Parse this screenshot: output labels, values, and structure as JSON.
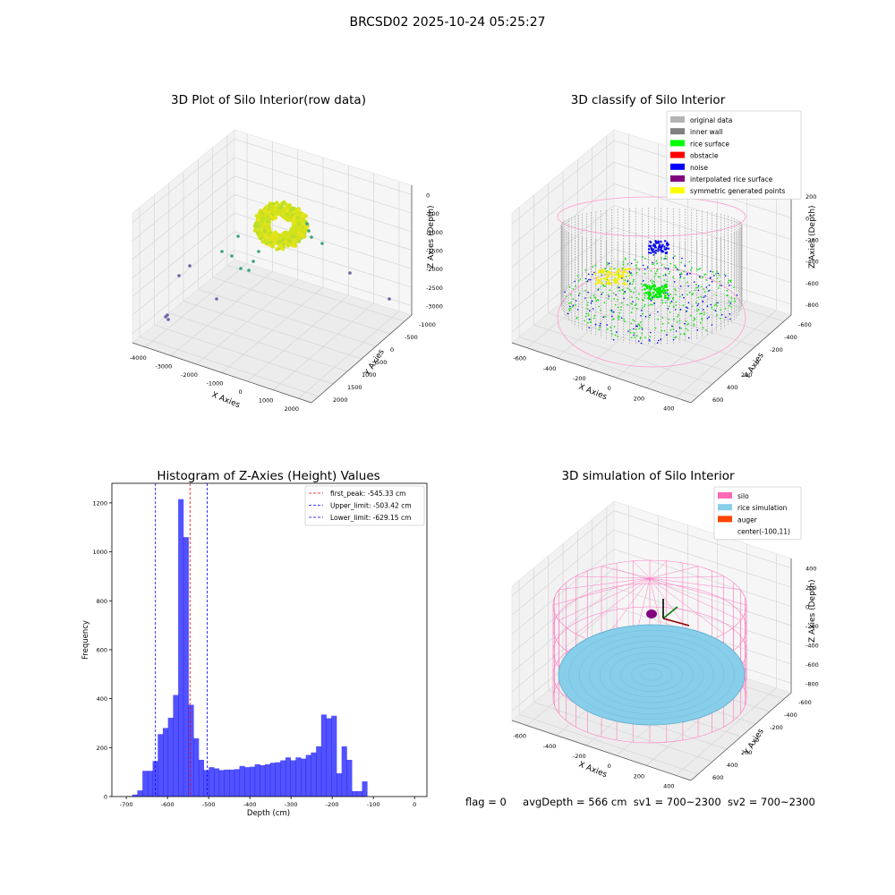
{
  "suptitle": "BRCSD02 2025-10-24 05:25:27",
  "footer": {
    "flag": "flag = 0",
    "avg_depth": "avgDepth = 566 cm",
    "sv1": "sv1 = 700~2300",
    "sv2": "sv2 = 700~2300"
  },
  "panel_raw": {
    "title": "3D Plot of Silo Interior(row data)",
    "xlabel": "X Axies",
    "ylabel": "Y Axies",
    "zlabel": "Z Axies (Depth)",
    "xticks": [
      "-4000",
      "-3000",
      "-2000",
      "-1000",
      "0",
      "1000",
      "2000"
    ],
    "yticks": [
      "-1000",
      "-500",
      "0",
      "500",
      "1000",
      "1500",
      "2000"
    ],
    "zticks": [
      "0",
      "-500",
      "-1000",
      "-1500",
      "-2000",
      "-2500",
      "-3000"
    ],
    "colors": {
      "surface": "#c8e01a",
      "outlier": "#3aa57d",
      "far": "#6a63a8"
    }
  },
  "panel_classify": {
    "title": "3D classify of Silo Interior",
    "xlabel": "X Axies",
    "ylabel": "Y Axies",
    "zlabel": "Z Axies (Depth)",
    "xticks": [
      "-600",
      "-400",
      "-200",
      "0",
      "200",
      "400"
    ],
    "yticks": [
      "-600",
      "-400",
      "-200",
      "0",
      "200",
      "400",
      "600"
    ],
    "zticks": [
      "200",
      "0",
      "-200",
      "-400",
      "-600",
      "-800"
    ],
    "legend": [
      {
        "label": "original data",
        "color": "#b3b3b3"
      },
      {
        "label": "inner wall",
        "color": "#808080"
      },
      {
        "label": "rice surface",
        "color": "#00ff00"
      },
      {
        "label": "obstacle",
        "color": "#ff0000"
      },
      {
        "label": "noise",
        "color": "#0000ff"
      },
      {
        "label": "interpolated rice surface",
        "color": "#800080"
      },
      {
        "label": "symmetric generated points",
        "color": "#ffff00"
      }
    ]
  },
  "panel_sim": {
    "title": "3D simulation of Silo Interior",
    "xlabel": "X Axies",
    "ylabel": "Y Axies",
    "zlabel": "Z Axies (Depth)",
    "xticks": [
      "-600",
      "-400",
      "-200",
      "0",
      "200",
      "400"
    ],
    "yticks": [
      "-600",
      "-400",
      "-200",
      "0",
      "200",
      "400",
      "600"
    ],
    "zticks": [
      "400",
      "200",
      "0",
      "-200",
      "-400",
      "-600",
      "-800"
    ],
    "legend": [
      {
        "label": "silo",
        "color": "#ff69b4"
      },
      {
        "label": "rice simulation",
        "color": "#87ceeb"
      },
      {
        "label": "auger",
        "color": "#ff4500"
      },
      {
        "label": "center(-100,11)",
        "color": ""
      }
    ]
  },
  "chart_data": {
    "type": "bar",
    "title": "Histogram of Z-Axies (Height) Values",
    "xlabel": "Depth (cm)",
    "ylabel": "Frequency",
    "xlim": [
      -735,
      30
    ],
    "ylim": [
      0,
      1280
    ],
    "xticks": [
      -700,
      -600,
      -500,
      -400,
      -300,
      -200,
      -100,
      0
    ],
    "yticks": [
      0,
      200,
      400,
      600,
      800,
      1000,
      1200
    ],
    "bar_color": "#0000ff",
    "bin_width": 12.4,
    "bins_start": -698,
    "values": [
      2,
      8,
      25,
      105,
      105,
      145,
      255,
      280,
      322,
      415,
      1215,
      1060,
      375,
      238,
      150,
      108,
      120,
      115,
      108,
      110,
      110,
      112,
      125,
      120,
      122,
      132,
      128,
      132,
      138,
      140,
      148,
      160,
      148,
      160,
      155,
      170,
      180,
      205,
      335,
      320,
      330,
      95,
      205,
      150,
      22,
      22,
      62
    ],
    "vlines": [
      {
        "x": -545.33,
        "color": "#ff0000",
        "label": "first_peak: -545.33 cm"
      },
      {
        "x": -503.42,
        "color": "#0000ff",
        "label": "Upper_limit: -503.42 cm"
      },
      {
        "x": -629.15,
        "color": "#0000ff",
        "label": "Lower_limit: -629.15 cm"
      }
    ],
    "legend_position": "upper right"
  }
}
